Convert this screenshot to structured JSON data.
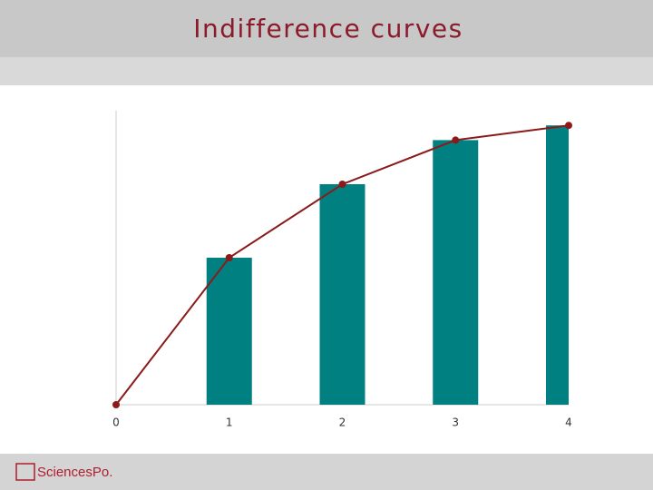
{
  "chart_data": {
    "type": "bar",
    "title": "Indifference curves",
    "x": [
      0,
      1,
      2,
      3,
      4
    ],
    "xlim": [
      0,
      4
    ],
    "xticks": [
      0,
      1,
      2,
      3,
      4
    ],
    "ylim": [
      0,
      100
    ],
    "series": [
      {
        "type": "bar",
        "color": "#008080",
        "values": [
          0,
          50,
          75,
          90,
          95
        ]
      },
      {
        "type": "line",
        "color": "#8b1a1a",
        "values": [
          0,
          50,
          75,
          90,
          95
        ]
      }
    ]
  },
  "footer": {
    "logo": "SciencesPo."
  }
}
